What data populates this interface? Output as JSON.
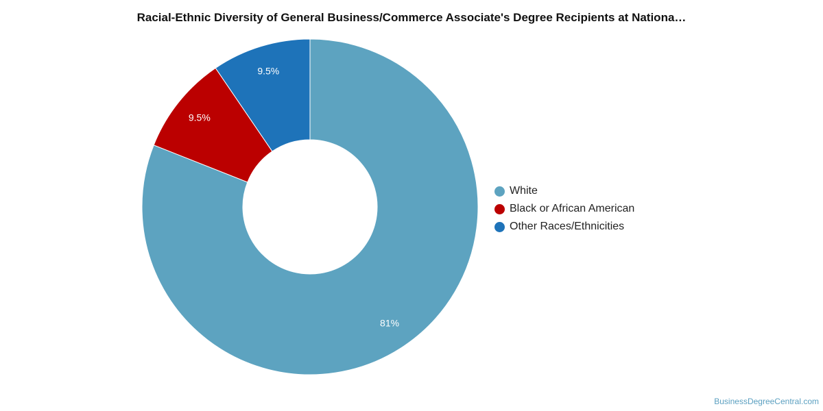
{
  "chart_data": {
    "type": "pie",
    "variant": "donut",
    "title": "Racial-Ethnic Diversity of General Business/Commerce Associate's Degree Recipients at Nationa…",
    "categories": [
      "White",
      "Black or African American",
      "Other Races/Ethnicities"
    ],
    "values": [
      81,
      9.5,
      9.5
    ],
    "data_labels": [
      "81%",
      "9.5%",
      "9.5%"
    ],
    "colors": [
      "#5da3c0",
      "#bb0000",
      "#1e73b9"
    ],
    "legend_position": "right"
  },
  "watermark": "BusinessDegreeCentral.com"
}
